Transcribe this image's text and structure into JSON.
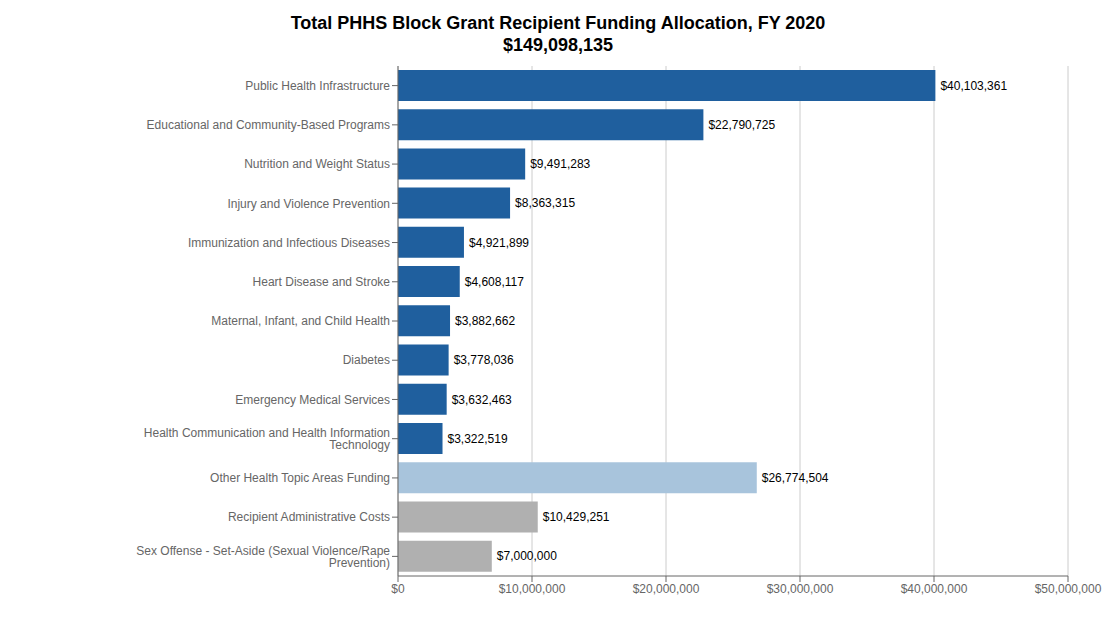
{
  "chart_data": {
    "type": "bar",
    "orientation": "horizontal",
    "title": "Total PHHS Block Grant Recipient Funding Allocation, FY 2020",
    "subtitle": "$149,098,135",
    "categories": [
      "Public Health Infrastructure",
      "Educational and Community-Based Programs",
      "Nutrition and Weight Status",
      "Injury and Violence Prevention",
      "Immunization and Infectious Diseases",
      "Heart Disease and Stroke",
      "Maternal, Infant, and Child Health",
      "Diabetes",
      "Emergency Medical Services",
      "Health Communication and Health Information Technology",
      "Other Health Topic Areas Funding",
      "Recipient Administrative Costs",
      "Sex Offense - Set-Aside (Sexual Violence/Rape Prevention)"
    ],
    "values": [
      40103361,
      22790725,
      9491283,
      8363315,
      4921899,
      4608117,
      3882662,
      3778036,
      3632463,
      3322519,
      26774504,
      10429251,
      7000000
    ],
    "value_labels": [
      "$40,103,361",
      "$22,790,725",
      "$9,491,283",
      "$8,363,315",
      "$4,921,899",
      "$4,608,117",
      "$3,882,662",
      "$3,778,036",
      "$3,632,463",
      "$3,322,519",
      "$26,774,504",
      "$10,429,251",
      "$7,000,000"
    ],
    "data_labels": true,
    "colors": [
      "#1f5f9e",
      "#1f5f9e",
      "#1f5f9e",
      "#1f5f9e",
      "#1f5f9e",
      "#1f5f9e",
      "#1f5f9e",
      "#1f5f9e",
      "#1f5f9e",
      "#1f5f9e",
      "#a8c4dc",
      "#b0b0b0",
      "#b0b0b0"
    ],
    "xlim": [
      0,
      50000000
    ],
    "xticks": [
      {
        "value": 0,
        "label": "$0"
      },
      {
        "value": 10000000,
        "label": "$10,000,000"
      },
      {
        "value": 20000000,
        "label": "$20,000,000"
      },
      {
        "value": 30000000,
        "label": "$30,000,000"
      },
      {
        "value": 40000000,
        "label": "$40,000,000"
      },
      {
        "value": 50000000,
        "label": "$50,000,000"
      }
    ],
    "grid": true
  }
}
